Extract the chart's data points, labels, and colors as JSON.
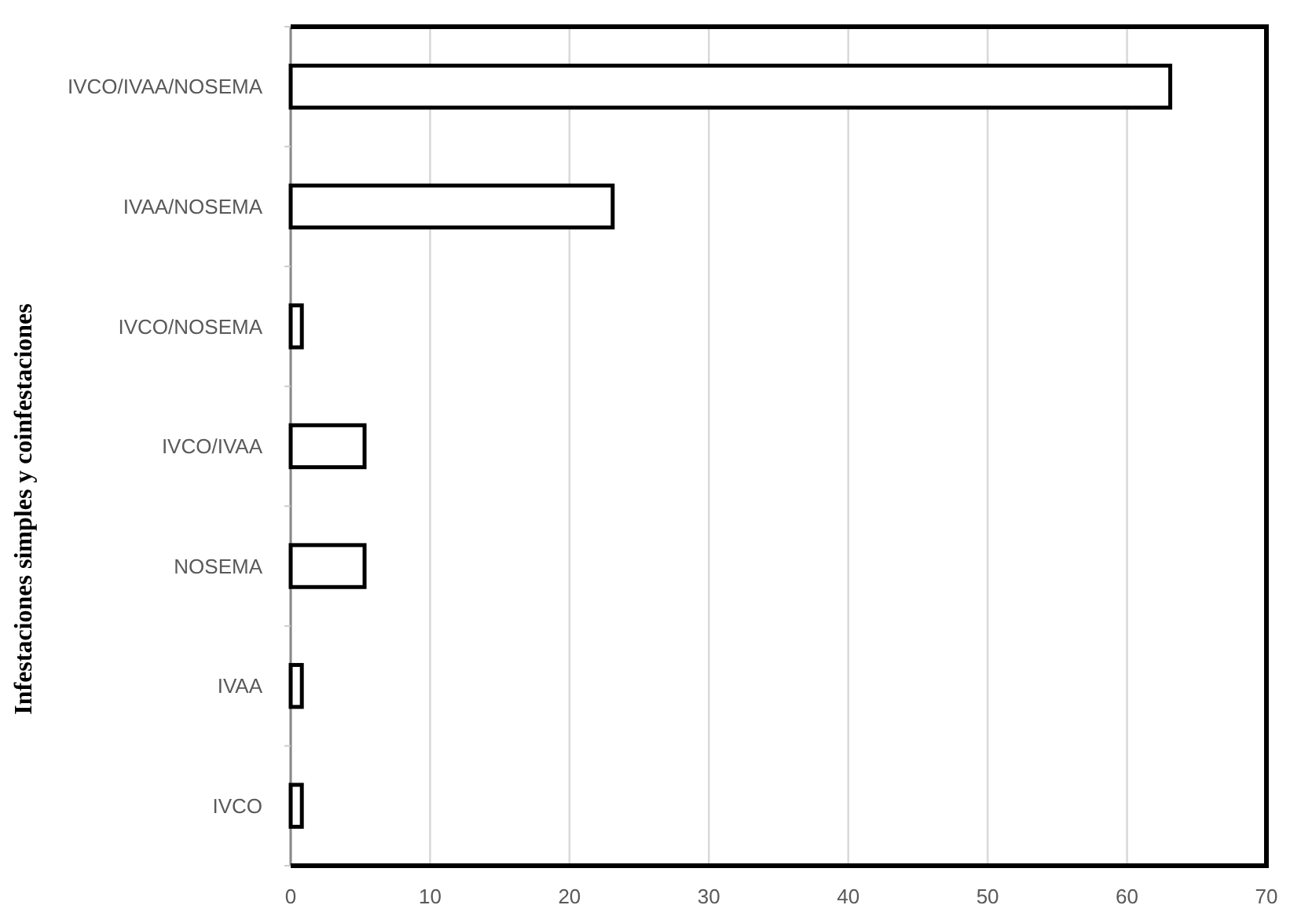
{
  "chart_data": {
    "type": "bar",
    "orientation": "horizontal",
    "ylabel": "Infestaciones simples y coinfestaciones",
    "categories": [
      "IVCO/IVAA/NOSEMA",
      "IVAA/NOSEMA",
      "IVCO/NOSEMA",
      "IVCO/IVAA",
      "NOSEMA",
      "IVAA",
      "IVCO"
    ],
    "values": [
      63.1,
      23.1,
      0.8,
      5.3,
      5.3,
      0.8,
      0.8
    ],
    "color": "#ffffff",
    "xlim": [
      0,
      70
    ],
    "xticks": [
      0,
      10,
      20,
      30,
      40,
      50,
      60,
      70
    ],
    "grid": "x"
  }
}
